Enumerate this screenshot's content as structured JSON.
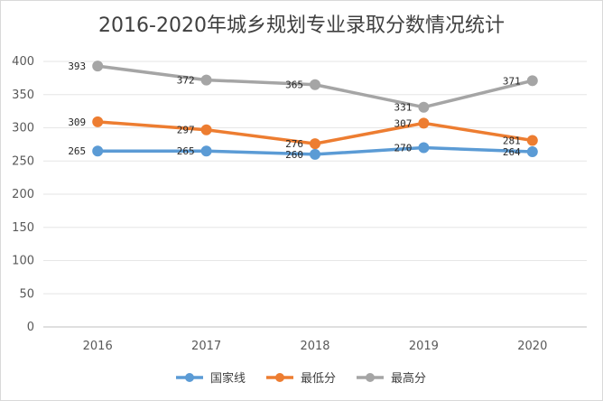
{
  "chart_data": {
    "type": "line",
    "title": "2016-2020年城乡规划专业录取分数情况统计",
    "categories": [
      "2016",
      "2017",
      "2018",
      "2019",
      "2020"
    ],
    "ylim": [
      0,
      400
    ],
    "yticks": [
      0,
      50,
      100,
      150,
      200,
      250,
      300,
      350,
      400
    ],
    "grid": true,
    "legend_position": "bottom",
    "series": [
      {
        "name": "国家线",
        "color": "#5b9bd5",
        "values": [
          265,
          265,
          260,
          270,
          264
        ]
      },
      {
        "name": "最低分",
        "color": "#ed7d31",
        "values": [
          309,
          297,
          276,
          307,
          281
        ]
      },
      {
        "name": "最高分",
        "color": "#a5a5a5",
        "values": [
          393,
          372,
          365,
          331,
          371
        ]
      }
    ]
  }
}
